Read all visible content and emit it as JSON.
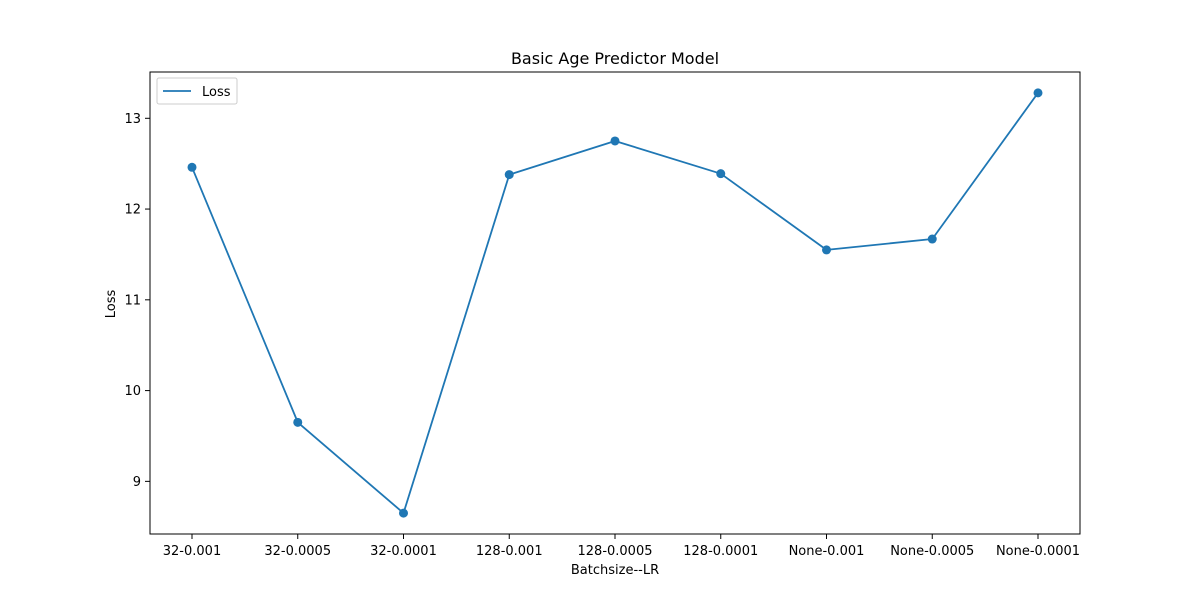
{
  "chart_data": {
    "type": "line",
    "title": "Basic Age Predictor Model",
    "xlabel": "Batchsize--LR",
    "ylabel": "Loss",
    "categories": [
      "32-0.001",
      "32-0.0005",
      "32-0.0001",
      "128-0.001",
      "128-0.0005",
      "128-0.0001",
      "None-0.001",
      "None-0.0005",
      "None-0.0001"
    ],
    "series": [
      {
        "name": "Loss",
        "color": "#1f77b4",
        "values": [
          12.46,
          9.65,
          8.65,
          12.38,
          12.75,
          12.39,
          11.55,
          11.67,
          13.28
        ]
      }
    ],
    "yticks": [
      9,
      10,
      11,
      12,
      13
    ],
    "ylim": [
      8.42,
      13.51
    ],
    "legend_position": "upper-left",
    "grid": false
  }
}
